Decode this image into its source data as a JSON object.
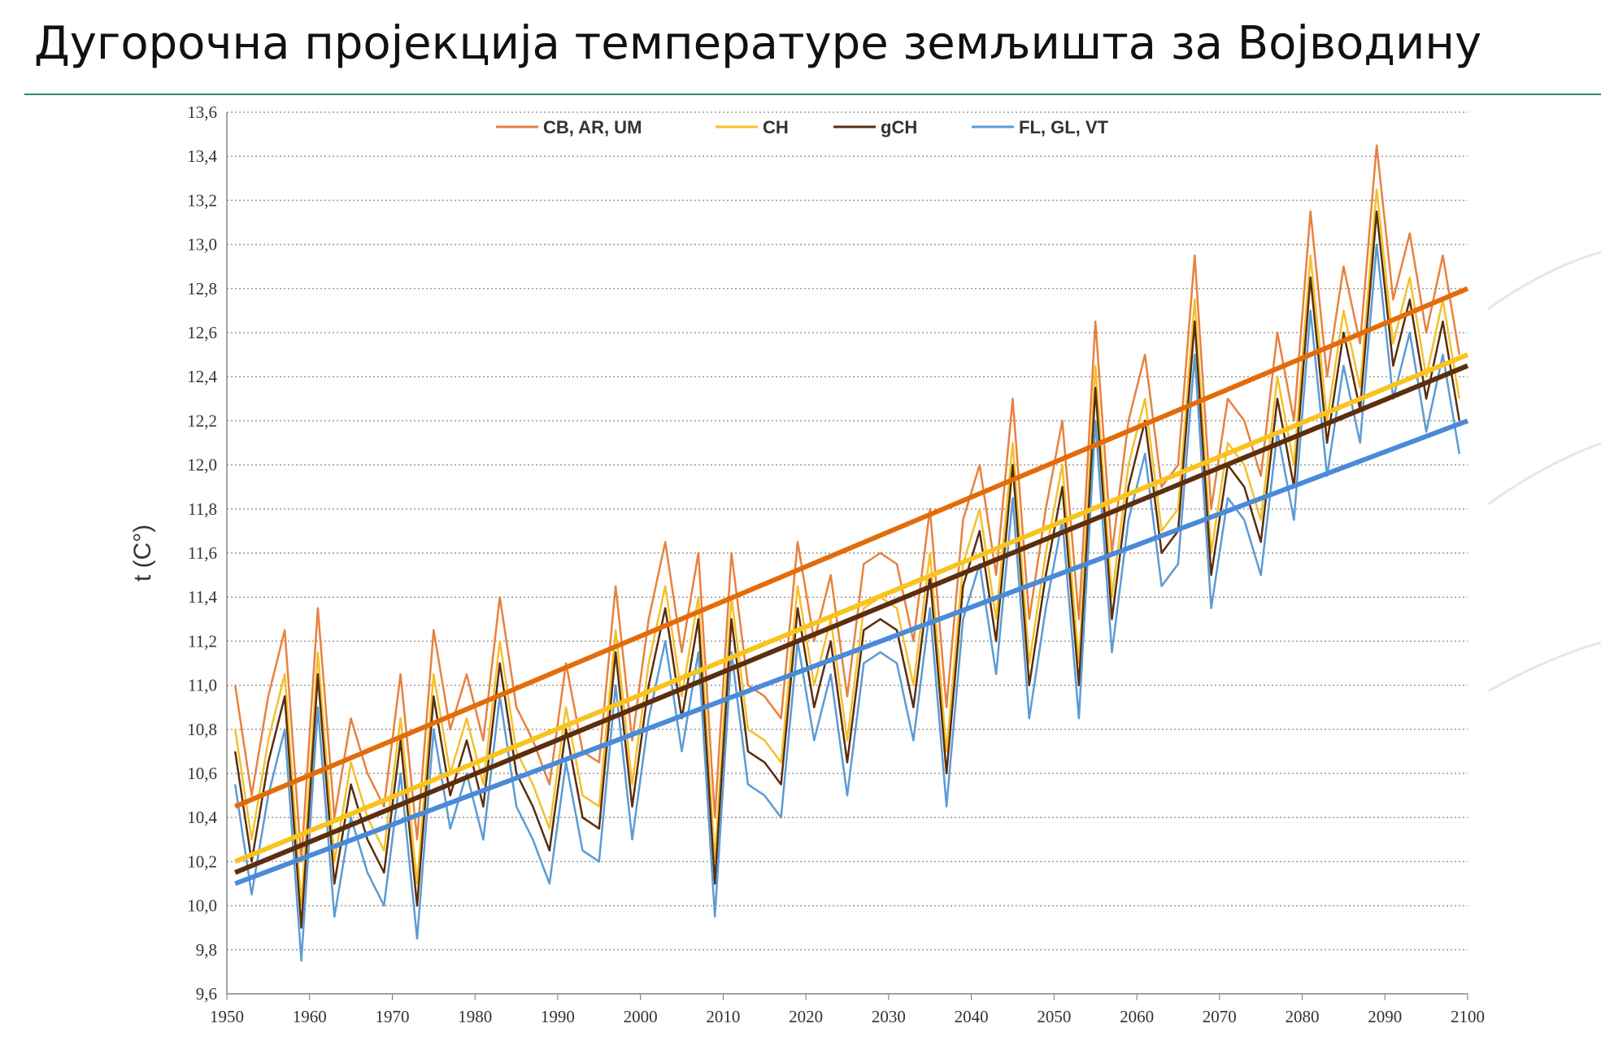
{
  "chart_data": {
    "type": "line",
    "title": "Дугорочна пројекција температуре земљишта за Војводину",
    "ylabel": "t (C°)",
    "x": [
      1951,
      1953,
      1955,
      1957,
      1959,
      1961,
      1963,
      1965,
      1967,
      1969,
      1971,
      1973,
      1975,
      1977,
      1979,
      1981,
      1983,
      1985,
      1987,
      1989,
      1991,
      1993,
      1995,
      1997,
      1999,
      2001,
      2003,
      2005,
      2007,
      2009,
      2011,
      2013,
      2015,
      2017,
      2019,
      2021,
      2023,
      2025,
      2027,
      2029,
      2031,
      2033,
      2035,
      2037,
      2039,
      2041,
      2043,
      2045,
      2047,
      2049,
      2051,
      2053,
      2055,
      2057,
      2059,
      2061,
      2063,
      2065,
      2067,
      2069,
      2071,
      2073,
      2075,
      2077,
      2079,
      2081,
      2083,
      2085,
      2087,
      2089,
      2091,
      2093,
      2095,
      2097,
      2099
    ],
    "series": [
      {
        "name": "CB, AR, UM",
        "color": "#e8813f",
        "values": [
          11.0,
          10.5,
          10.95,
          11.25,
          10.2,
          11.35,
          10.4,
          10.85,
          10.6,
          10.45,
          11.05,
          10.3,
          11.25,
          10.8,
          11.05,
          10.75,
          11.4,
          10.9,
          10.75,
          10.55,
          11.1,
          10.7,
          10.65,
          11.45,
          10.75,
          11.3,
          11.65,
          11.15,
          11.6,
          10.4,
          11.6,
          11.0,
          10.95,
          10.85,
          11.65,
          11.2,
          11.5,
          10.95,
          11.55,
          11.6,
          11.55,
          11.2,
          11.8,
          10.9,
          11.75,
          12.0,
          11.5,
          12.3,
          11.3,
          11.8,
          12.2,
          11.3,
          12.65,
          11.6,
          12.2,
          12.5,
          11.9,
          12.0,
          12.95,
          11.8,
          12.3,
          12.2,
          11.95,
          12.6,
          12.2,
          13.15,
          12.4,
          12.9,
          12.55,
          13.45,
          12.75,
          13.05,
          12.6,
          12.95,
          12.5
        ]
      },
      {
        "name": "CH",
        "color": "#f5c02a",
        "values": [
          10.8,
          10.3,
          10.75,
          11.05,
          10.0,
          11.15,
          10.2,
          10.65,
          10.4,
          10.25,
          10.85,
          10.1,
          11.05,
          10.6,
          10.85,
          10.55,
          11.2,
          10.7,
          10.55,
          10.35,
          10.9,
          10.5,
          10.45,
          11.25,
          10.55,
          11.1,
          11.45,
          10.95,
          11.4,
          10.2,
          11.4,
          10.8,
          10.75,
          10.65,
          11.45,
          11.0,
          11.3,
          10.75,
          11.35,
          11.4,
          11.35,
          11.0,
          11.6,
          10.7,
          11.55,
          11.8,
          11.3,
          12.1,
          11.1,
          11.6,
          12.0,
          11.1,
          12.45,
          11.4,
          12.0,
          12.3,
          11.7,
          11.8,
          12.75,
          11.6,
          12.1,
          12.0,
          11.75,
          12.4,
          12.0,
          12.95,
          12.2,
          12.7,
          12.35,
          13.25,
          12.55,
          12.85,
          12.4,
          12.75,
          12.3
        ]
      },
      {
        "name": "gCH",
        "color": "#5a2d0c",
        "values": [
          10.7,
          10.2,
          10.65,
          10.95,
          9.9,
          11.05,
          10.1,
          10.55,
          10.3,
          10.15,
          10.75,
          10.0,
          10.95,
          10.5,
          10.75,
          10.45,
          11.1,
          10.6,
          10.45,
          10.25,
          10.8,
          10.4,
          10.35,
          11.15,
          10.45,
          11.0,
          11.35,
          10.85,
          11.3,
          10.1,
          11.3,
          10.7,
          10.65,
          10.55,
          11.35,
          10.9,
          11.2,
          10.65,
          11.25,
          11.3,
          11.25,
          10.9,
          11.5,
          10.6,
          11.45,
          11.7,
          11.2,
          12.0,
          11.0,
          11.5,
          11.9,
          11.0,
          12.35,
          11.3,
          11.9,
          12.2,
          11.6,
          11.7,
          12.65,
          11.5,
          12.0,
          11.9,
          11.65,
          12.3,
          11.9,
          12.85,
          12.1,
          12.6,
          12.25,
          13.15,
          12.45,
          12.75,
          12.3,
          12.65,
          12.2
        ]
      },
      {
        "name": "FL, GL, VT",
        "color": "#5b9bd5",
        "values": [
          10.55,
          10.05,
          10.5,
          10.8,
          9.75,
          10.9,
          9.95,
          10.4,
          10.15,
          10.0,
          10.6,
          9.85,
          10.8,
          10.35,
          10.6,
          10.3,
          10.95,
          10.45,
          10.3,
          10.1,
          10.65,
          10.25,
          10.2,
          11.0,
          10.3,
          10.85,
          11.2,
          10.7,
          11.15,
          9.95,
          11.15,
          10.55,
          10.5,
          10.4,
          11.2,
          10.75,
          11.05,
          10.5,
          11.1,
          11.15,
          11.1,
          10.75,
          11.35,
          10.45,
          11.3,
          11.55,
          11.05,
          11.85,
          10.85,
          11.35,
          11.75,
          10.85,
          12.2,
          11.15,
          11.75,
          12.05,
          11.45,
          11.55,
          12.5,
          11.35,
          11.85,
          11.75,
          11.5,
          12.15,
          11.75,
          12.7,
          11.95,
          12.45,
          12.1,
          13.0,
          12.3,
          12.6,
          12.15,
          12.5,
          12.05
        ]
      }
    ],
    "trends": [
      {
        "color": "#e36c0a",
        "x": [
          1951,
          2100
        ],
        "values": [
          10.45,
          12.8
        ]
      },
      {
        "color": "#f9c31f",
        "x": [
          1951,
          2100
        ],
        "values": [
          10.2,
          12.5
        ]
      },
      {
        "color": "#5c2e0e",
        "x": [
          1951,
          2100
        ],
        "values": [
          10.15,
          12.45
        ]
      },
      {
        "color": "#4a8ad8",
        "x": [
          1951,
          2100
        ],
        "values": [
          10.1,
          12.2
        ]
      }
    ],
    "xlim": [
      1950,
      2100
    ],
    "xticks": [
      1950,
      1960,
      1970,
      1980,
      1990,
      2000,
      2010,
      2020,
      2030,
      2040,
      2050,
      2060,
      2070,
      2080,
      2090,
      2100
    ],
    "ylim": [
      9.6,
      13.6
    ],
    "yticks": [
      {
        "value": 9.6,
        "label": "9,6"
      },
      {
        "value": 9.8,
        "label": "9,8"
      },
      {
        "value": 10.0,
        "label": "10,0"
      },
      {
        "value": 10.2,
        "label": "10,2"
      },
      {
        "value": 10.4,
        "label": "10,4"
      },
      {
        "value": 10.6,
        "label": "10,6"
      },
      {
        "value": 10.8,
        "label": "10,8"
      },
      {
        "value": 11.0,
        "label": "11,0"
      },
      {
        "value": 11.2,
        "label": "11,2"
      },
      {
        "value": 11.4,
        "label": "11,4"
      },
      {
        "value": 11.6,
        "label": "11,6"
      },
      {
        "value": 11.8,
        "label": "11,8"
      },
      {
        "value": 12.0,
        "label": "12,0"
      },
      {
        "value": 12.2,
        "label": "12,2"
      },
      {
        "value": 12.4,
        "label": "12,4"
      },
      {
        "value": 12.6,
        "label": "12,6"
      },
      {
        "value": 12.8,
        "label": "12,8"
      },
      {
        "value": 13.0,
        "label": "13,0"
      },
      {
        "value": 13.2,
        "label": "13,2"
      },
      {
        "value": 13.4,
        "label": "13,4"
      },
      {
        "value": 13.6,
        "label": "13,6"
      }
    ],
    "grid": true,
    "legend": "top"
  }
}
